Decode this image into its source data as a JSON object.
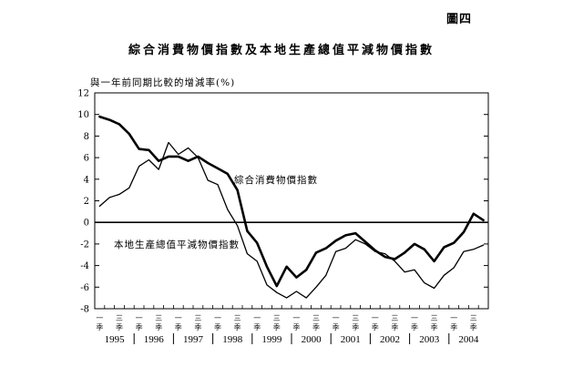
{
  "figure_label": "圖四",
  "chart_data": {
    "type": "line",
    "title": "綜合消費物價指數及本地生產總值平減物價指數",
    "ylabel": "與一年前同期比較的增減率(%)",
    "xlabel": "",
    "ylim": [
      -8,
      12
    ],
    "yticks": [
      -8,
      -6,
      -4,
      -2,
      0,
      2,
      4,
      6,
      8,
      10,
      12
    ],
    "years": [
      "1995",
      "1996",
      "1997",
      "1998",
      "1999",
      "2000",
      "2001",
      "2002",
      "2003",
      "2004"
    ],
    "quarter_labels": [
      "一\n季",
      "三\n季"
    ],
    "x": [
      "1995Q1",
      "1995Q2",
      "1995Q3",
      "1995Q4",
      "1996Q1",
      "1996Q2",
      "1996Q3",
      "1996Q4",
      "1997Q1",
      "1997Q2",
      "1997Q3",
      "1997Q4",
      "1998Q1",
      "1998Q2",
      "1998Q3",
      "1998Q4",
      "1999Q1",
      "1999Q2",
      "1999Q3",
      "1999Q4",
      "2000Q1",
      "2000Q2",
      "2000Q3",
      "2000Q4",
      "2001Q1",
      "2001Q2",
      "2001Q3",
      "2001Q4",
      "2002Q1",
      "2002Q2",
      "2002Q3",
      "2002Q4",
      "2003Q1",
      "2003Q2",
      "2003Q3",
      "2003Q4",
      "2004Q1",
      "2004Q2",
      "2004Q3",
      "2004Q4"
    ],
    "series": [
      {
        "name": "綜合消費物價指數",
        "stroke_width": 2.6,
        "values": [
          9.8,
          9.5,
          9.1,
          8.2,
          6.8,
          6.7,
          5.7,
          6.1,
          6.1,
          5.7,
          6.1,
          5.5,
          5.0,
          4.5,
          3.0,
          -0.8,
          -1.9,
          -4.1,
          -5.9,
          -4.1,
          -5.1,
          -4.4,
          -2.8,
          -2.4,
          -1.7,
          -1.2,
          -1.0,
          -1.8,
          -2.6,
          -3.2,
          -3.4,
          -2.8,
          -2.0,
          -2.5,
          -3.6,
          -2.3,
          -1.9,
          -0.9,
          0.8,
          0.2
        ]
      },
      {
        "name": "本地生產總值平減物價指數",
        "stroke_width": 1.3,
        "values": [
          1.5,
          2.3,
          2.6,
          3.2,
          5.2,
          5.8,
          4.9,
          7.4,
          6.3,
          6.9,
          6.0,
          3.9,
          3.5,
          1.2,
          -0.3,
          -2.9,
          -3.6,
          -5.8,
          -6.5,
          -7.0,
          -6.4,
          -7.0,
          -6.0,
          -4.9,
          -2.7,
          -2.4,
          -1.6,
          -2.0,
          -2.7,
          -2.9,
          -3.6,
          -4.6,
          -4.4,
          -5.6,
          -6.1,
          -4.9,
          -4.2,
          -2.7,
          -2.5,
          -2.1
        ]
      }
    ],
    "annotations": [
      {
        "text": "綜合消費物價指數",
        "series": 0
      },
      {
        "text": "本地生產總值平減物價指數",
        "series": 1
      }
    ]
  }
}
